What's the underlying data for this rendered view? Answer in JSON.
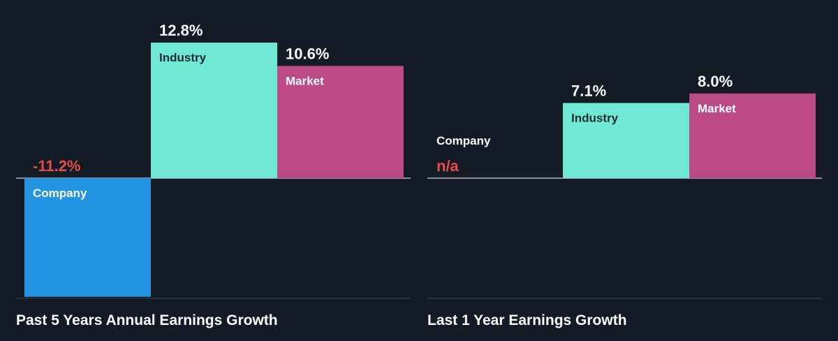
{
  "colors": {
    "background": "#151b24",
    "company": "#2394e2",
    "industry": "#6fe8d5",
    "market": "#bc4a87",
    "negative_text": "#e64b4b",
    "label_text": "#ffffff",
    "label_on_light": "#1f2a33",
    "axis": "#ffffff",
    "divider": "#3a4048"
  },
  "chart_data": [
    {
      "type": "bar",
      "title": "Past 5 Years Annual Earnings Growth",
      "categories": [
        "Company",
        "Industry",
        "Market"
      ],
      "values": [
        -11.2,
        12.8,
        10.6
      ],
      "value_labels": [
        "-11.2%",
        "12.8%",
        "10.6%"
      ],
      "units": "%",
      "ylim": [
        -19,
        12.8
      ],
      "grid": false,
      "legend": "none"
    },
    {
      "type": "bar",
      "title": "Last 1 Year Earnings Growth",
      "categories": [
        "Company",
        "Industry",
        "Market"
      ],
      "values": [
        null,
        7.1,
        8.0
      ],
      "value_labels": [
        "n/a",
        "7.1%",
        "8.0%"
      ],
      "units": "%",
      "ylim": [
        -19,
        12.8
      ],
      "grid": false,
      "legend": "none"
    }
  ]
}
